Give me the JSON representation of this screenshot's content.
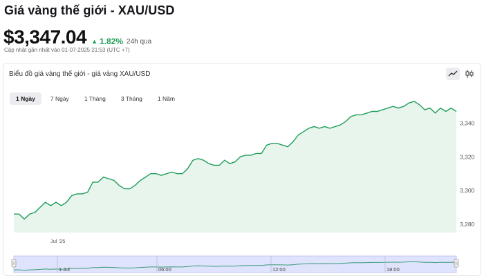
{
  "header": {
    "title": "Giá vàng thế giới - XAU/USD",
    "price": "$3,347.04",
    "change_arrow": "▲",
    "change": "1.82%",
    "period": "24h qua",
    "updated": "Cập nhật gần nhất vào 01-07-2025 21:53 (UTC +7)"
  },
  "chart_panel": {
    "title": "Biểu đồ giá vàng thế giới - giá vàng XAU/USD",
    "chart_type_buttons": [
      {
        "name": "line-chart-icon",
        "active": true
      },
      {
        "name": "candlestick-icon",
        "active": false
      }
    ],
    "range_tabs": [
      {
        "label": "1 Ngày",
        "active": true
      },
      {
        "label": "7 Ngày",
        "active": false
      },
      {
        "label": "1 Tháng",
        "active": false
      },
      {
        "label": "3 Tháng",
        "active": false
      },
      {
        "label": "1 Năm",
        "active": false
      }
    ]
  },
  "colors": {
    "line": "#1f9e5a",
    "fill": "#e8f5ec",
    "navigator_fill": "#dfe3fb",
    "navigator_line": "#3a9a7a"
  },
  "chart_data": {
    "type": "area",
    "y_ticks": [
      "3,340",
      "3,320",
      "3,300",
      "3,280"
    ],
    "y_tick_values": [
      3340,
      3320,
      3300,
      3280
    ],
    "ylim": [
      3275,
      3355
    ],
    "x_label": "Jul '25",
    "values": [
      3286,
      3286,
      3283,
      3286,
      3287,
      3290,
      3293,
      3291,
      3293,
      3291,
      3293,
      3297,
      3298,
      3298,
      3299,
      3305,
      3305,
      3308,
      3307,
      3306,
      3303,
      3301,
      3301,
      3303,
      3306,
      3308,
      3310,
      3310,
      3309,
      3310,
      3311,
      3310,
      3310,
      3313,
      3318,
      3319,
      3318,
      3316,
      3315,
      3315,
      3318,
      3316,
      3317,
      3320,
      3321,
      3321,
      3322,
      3322,
      3327,
      3328,
      3328,
      3327,
      3326,
      3329,
      3333,
      3335,
      3337,
      3338,
      3337,
      3338,
      3337,
      3338,
      3339,
      3341,
      3344,
      3345,
      3345,
      3346,
      3347,
      3347,
      3348,
      3349,
      3350,
      3349,
      3350,
      3352,
      3353,
      3351,
      3348,
      3349,
      3346,
      3349,
      3347,
      3349,
      3347
    ],
    "navigator_labels": [
      "1 Jul",
      "06:00",
      "12:00",
      "18:00"
    ],
    "grid": false
  }
}
